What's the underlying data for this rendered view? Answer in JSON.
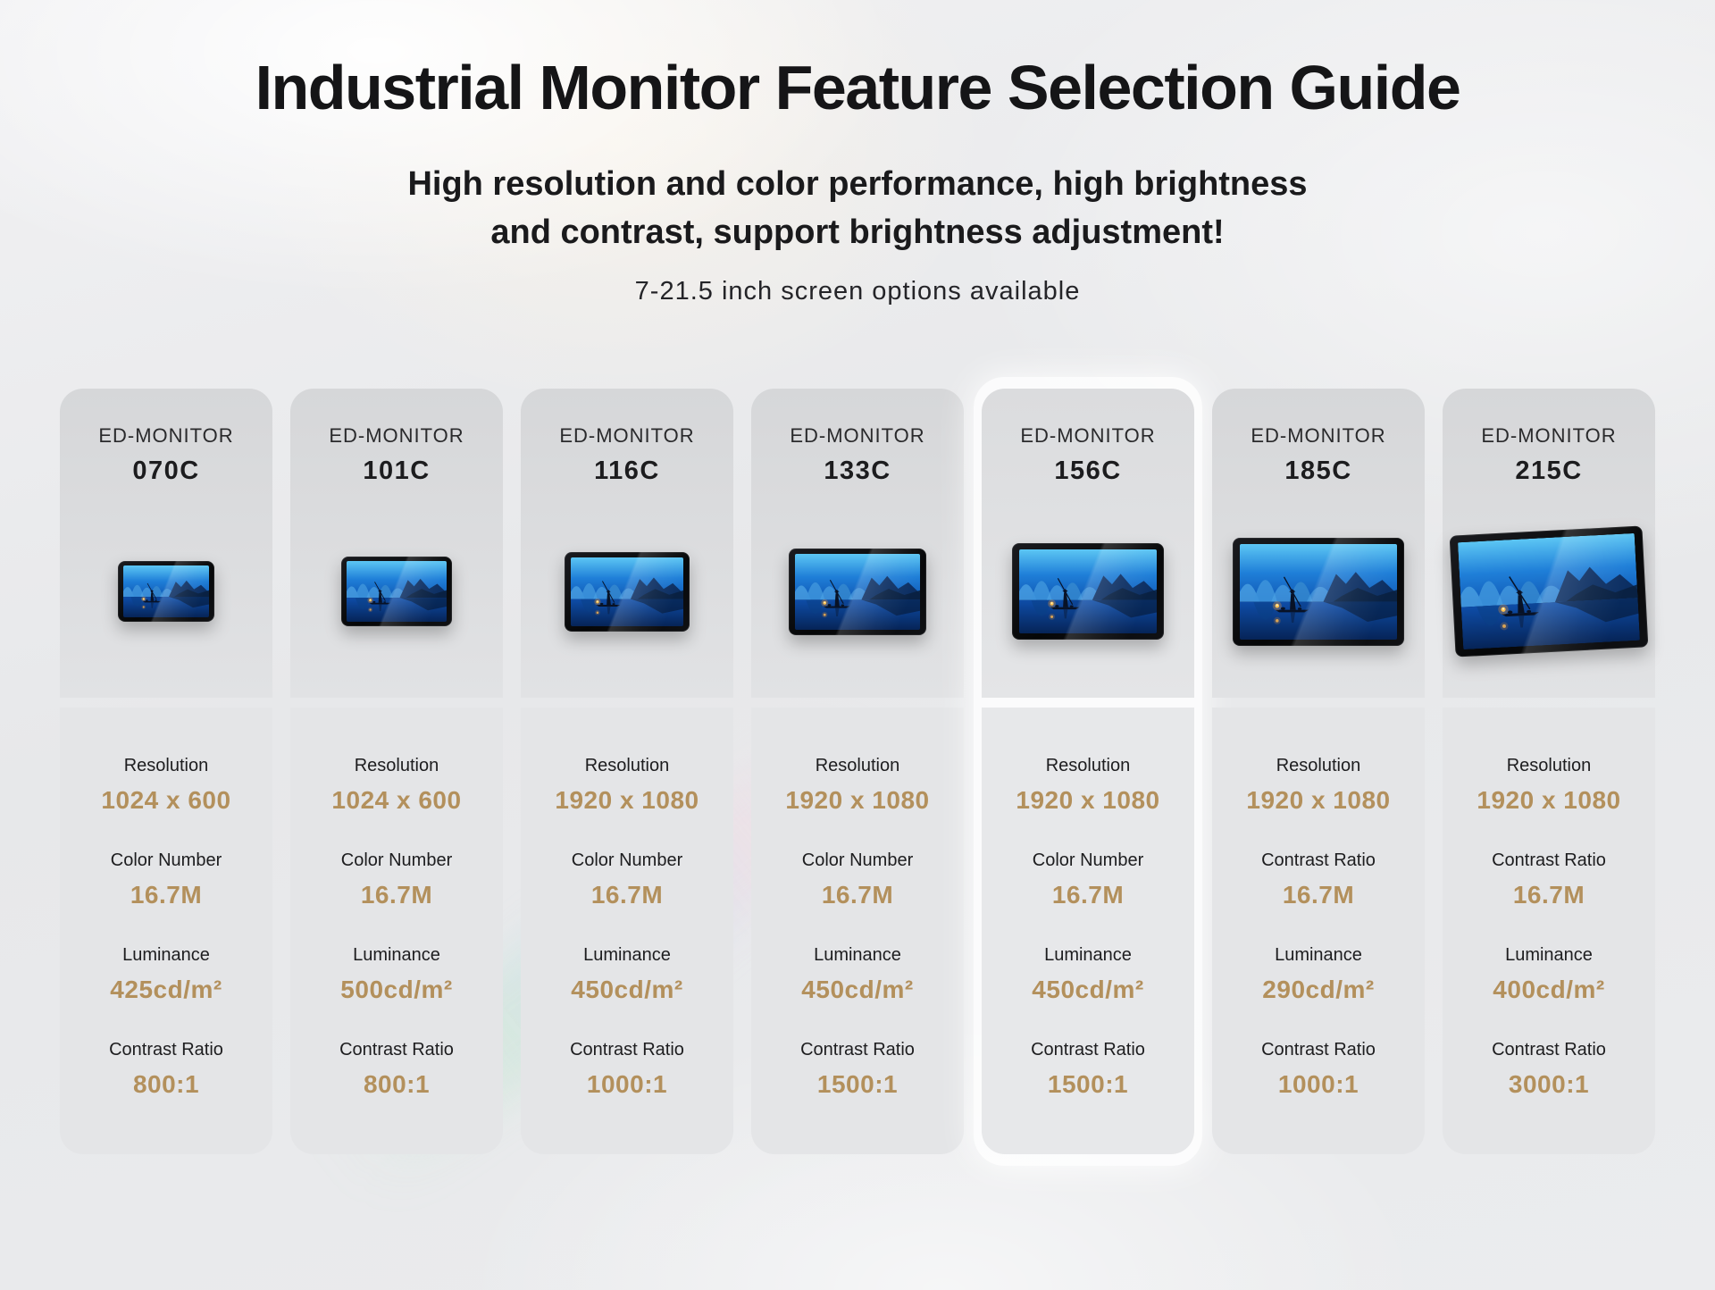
{
  "header": {
    "title": "Industrial Monitor Feature Selection Guide",
    "subtitle_line1": "High resolution and color performance, high brightness",
    "subtitle_line2": "and contrast, support brightness adjustment!",
    "tagline": "7-21.5 inch screen options available"
  },
  "colors": {
    "accent_gold": "#b3905c",
    "title_text": "#151517",
    "card_top_bg": "#d9dadc",
    "card_specs_bg": "#e4e5e7",
    "monitor_bezel": "#0b0c0e",
    "screen_blue": "#1f7fd8",
    "lantern_orange": "#ffb84d"
  },
  "cards": [
    {
      "brand": "ED-MONITOR",
      "model": "070C",
      "featured": false,
      "screen_image": "fisherman-lake-scene",
      "specs": [
        {
          "label": "Resolution",
          "value": "1024 x 600"
        },
        {
          "label": "Color Number",
          "value": "16.7M"
        },
        {
          "label": "Luminance",
          "value": "425cd/m²"
        },
        {
          "label": "Contrast Ratio",
          "value": "800:1"
        }
      ]
    },
    {
      "brand": "ED-MONITOR",
      "model": "101C",
      "featured": false,
      "screen_image": "fisherman-lake-scene",
      "specs": [
        {
          "label": "Resolution",
          "value": "1024 x 600"
        },
        {
          "label": "Color Number",
          "value": "16.7M"
        },
        {
          "label": "Luminance",
          "value": "500cd/m²"
        },
        {
          "label": "Contrast Ratio",
          "value": "800:1"
        }
      ]
    },
    {
      "brand": "ED-MONITOR",
      "model": "116C",
      "featured": false,
      "screen_image": "fisherman-lake-scene",
      "specs": [
        {
          "label": "Resolution",
          "value": "1920 x 1080"
        },
        {
          "label": "Color Number",
          "value": "16.7M"
        },
        {
          "label": "Luminance",
          "value": "450cd/m²"
        },
        {
          "label": "Contrast Ratio",
          "value": "1000:1"
        }
      ]
    },
    {
      "brand": "ED-MONITOR",
      "model": "133C",
      "featured": false,
      "screen_image": "fisherman-lake-scene",
      "specs": [
        {
          "label": "Resolution",
          "value": "1920 x 1080"
        },
        {
          "label": "Color Number",
          "value": "16.7M"
        },
        {
          "label": "Luminance",
          "value": "450cd/m²"
        },
        {
          "label": "Contrast Ratio",
          "value": "1500:1"
        }
      ]
    },
    {
      "brand": "ED-MONITOR",
      "model": "156C",
      "featured": true,
      "screen_image": "fisherman-lake-scene",
      "specs": [
        {
          "label": "Resolution",
          "value": "1920 x 1080"
        },
        {
          "label": "Color Number",
          "value": "16.7M"
        },
        {
          "label": "Luminance",
          "value": "450cd/m²"
        },
        {
          "label": "Contrast Ratio",
          "value": "1500:1"
        }
      ]
    },
    {
      "brand": "ED-MONITOR",
      "model": "185C",
      "featured": false,
      "screen_image": "fisherman-lake-scene",
      "specs": [
        {
          "label": "Resolution",
          "value": "1920 x 1080"
        },
        {
          "label": "Contrast Ratio",
          "value": "16.7M"
        },
        {
          "label": "Luminance",
          "value": "290cd/m²"
        },
        {
          "label": "Contrast Ratio",
          "value": "1000:1"
        }
      ]
    },
    {
      "brand": "ED-MONITOR",
      "model": "215C",
      "featured": false,
      "screen_image": "fisherman-lake-scene",
      "specs": [
        {
          "label": "Resolution",
          "value": "1920 x 1080"
        },
        {
          "label": "Contrast Ratio",
          "value": "16.7M"
        },
        {
          "label": "Luminance",
          "value": "400cd/m²"
        },
        {
          "label": "Contrast Ratio",
          "value": "3000:1"
        }
      ]
    }
  ]
}
